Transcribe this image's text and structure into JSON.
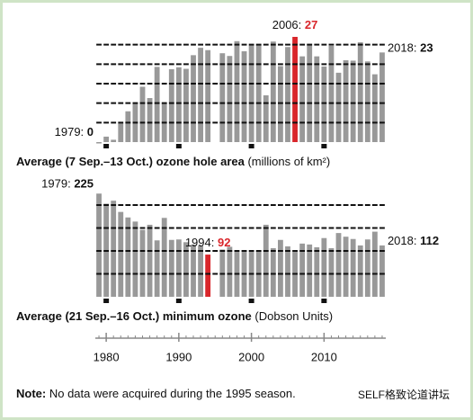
{
  "chart_data": [
    {
      "type": "bar",
      "title": "Average (7 Sep.–13 Oct.) ozone hole area",
      "unit": "(millions of km²)",
      "x": [
        1979,
        1980,
        1981,
        1982,
        1983,
        1984,
        1985,
        1986,
        1987,
        1988,
        1989,
        1990,
        1991,
        1992,
        1993,
        1994,
        1995,
        1996,
        1997,
        1998,
        1999,
        2000,
        2001,
        2002,
        2003,
        2004,
        2005,
        2006,
        2007,
        2008,
        2009,
        2010,
        2011,
        2012,
        2013,
        2014,
        2015,
        2016,
        2017,
        2018
      ],
      "values": [
        0,
        1.4,
        0.6,
        4.8,
        7.9,
        10.1,
        14.2,
        11.3,
        19.3,
        10.0,
        18.7,
        19.2,
        18.8,
        22.3,
        24.2,
        23.6,
        null,
        22.8,
        22.1,
        25.9,
        23.3,
        24.8,
        25.0,
        12.0,
        25.8,
        19.5,
        24.4,
        27,
        22.0,
        25.2,
        22.0,
        19.4,
        24.7,
        17.8,
        21.0,
        20.9,
        25.6,
        20.7,
        17.4,
        23
      ],
      "colors": [
        "#999999",
        "#999999",
        "#999999",
        "#999999",
        "#999999",
        "#999999",
        "#999999",
        "#999999",
        "#999999",
        "#999999",
        "#999999",
        "#999999",
        "#999999",
        "#999999",
        "#999999",
        "#999999",
        "#999999",
        "#999999",
        "#999999",
        "#999999",
        "#999999",
        "#999999",
        "#999999",
        "#999999",
        "#999999",
        "#999999",
        "#999999",
        "#d9262b",
        "#999999",
        "#999999",
        "#999999",
        "#999999",
        "#999999",
        "#999999",
        "#999999",
        "#999999",
        "#999999",
        "#999999",
        "#999999",
        "#999999"
      ],
      "annotations": [
        {
          "label": "1979:",
          "x": 1979
        },
        {
          "label": "2006:",
          "x": 2006
        },
        {
          "label": "2018:",
          "x": 2018
        }
      ],
      "xlim": [
        1978.5,
        2018.5
      ],
      "xticks": [
        1980,
        1990,
        2000,
        2010
      ],
      "ylim": [
        0,
        30
      ],
      "yticks": [
        5,
        10,
        15,
        20,
        25
      ],
      "grid": true
    },
    {
      "type": "bar",
      "title": "Average (21 Sep.–16 Oct.) minimum ozone",
      "unit": "(Dobson Units)",
      "x": [
        1979,
        1980,
        1981,
        1982,
        1983,
        1984,
        1985,
        1986,
        1987,
        1988,
        1989,
        1990,
        1991,
        1992,
        1993,
        1994,
        1995,
        1996,
        1997,
        1998,
        1999,
        2000,
        2001,
        2002,
        2003,
        2004,
        2005,
        2006,
        2007,
        2008,
        2009,
        2010,
        2011,
        2012,
        2013,
        2014,
        2015,
        2016,
        2017,
        2018
      ],
      "values": [
        225,
        203,
        209.5,
        185,
        173,
        164,
        146,
        157,
        123,
        172,
        124,
        125,
        119,
        114,
        112,
        92,
        null,
        103,
        109,
        98,
        102,
        98,
        101,
        157,
        106,
        124,
        110,
        98,
        116,
        114,
        108,
        128,
        106,
        139,
        131,
        126,
        112,
        125,
        142,
        112
      ],
      "colors": [
        "#999999",
        "#999999",
        "#999999",
        "#999999",
        "#999999",
        "#999999",
        "#999999",
        "#999999",
        "#999999",
        "#999999",
        "#999999",
        "#999999",
        "#999999",
        "#999999",
        "#999999",
        "#d9262b",
        "#999999",
        "#999999",
        "#999999",
        "#999999",
        "#999999",
        "#999999",
        "#999999",
        "#999999",
        "#999999",
        "#999999",
        "#999999",
        "#999999",
        "#999999",
        "#999999",
        "#999999",
        "#999999",
        "#999999",
        "#999999",
        "#999999",
        "#999999",
        "#999999",
        "#999999",
        "#999999",
        "#999999"
      ],
      "annotations": [
        {
          "label": "1979:",
          "x": 1979
        },
        {
          "label": "1994:",
          "x": 1994
        },
        {
          "label": "2018:",
          "x": 2018
        }
      ],
      "xlim": [
        1978.5,
        2018.5
      ],
      "xticks": [
        1980,
        1990,
        2000,
        2010
      ],
      "ylim": [
        0,
        250
      ],
      "yticks": [
        50,
        100,
        150,
        200
      ],
      "grid": true
    }
  ],
  "note": {
    "label": "Note:",
    "text": "No data were acquired during the 1995 season."
  },
  "watermark": "SELF格致论道讲坛"
}
